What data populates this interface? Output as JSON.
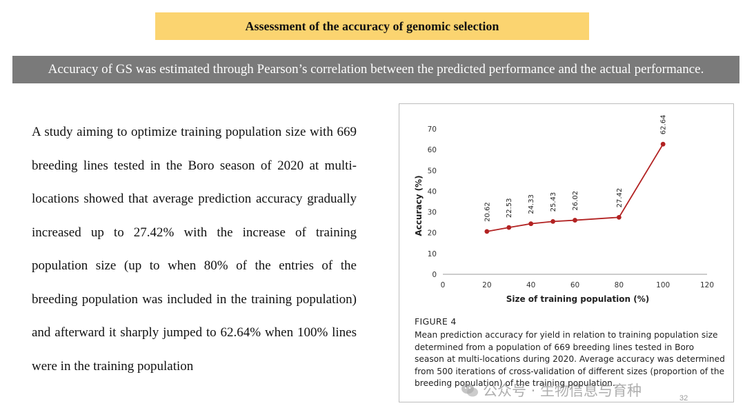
{
  "header": {
    "title": "Assessment of the accuracy of genomic selection",
    "subtitle": "Accuracy of GS was estimated through Pearson’s correlation between the predicted performance and the actual performance."
  },
  "body": {
    "paragraph": "A study aiming to optimize training population size with 669 breeding lines tested in the Boro season of 2020 at multi-locations showed that average prediction accuracy gradually increased up to 27.42% with the increase of training population size (up to when 80% of the entries of the breeding population was included in the training population) and afterward it sharply jumped to 62.64% when 100% lines were in the training population"
  },
  "figure": {
    "label": "FIGURE 4",
    "caption": "Mean prediction accuracy for yield in relation to training population size determined from a population of 669 breeding lines tested in Boro season at multi-locations during 2020. Average accuracy was determined from 500 iterations of cross-validation of different sizes (proportion of the breeding population) of the training population."
  },
  "page_number": "32",
  "watermark": "公众号 · 生物信息与育种",
  "colors": {
    "title_bg": "#fbd470",
    "subtitle_bg": "#7a7a7a",
    "series": "#b22222"
  },
  "chart_data": {
    "type": "line",
    "title": "",
    "xlabel": "Size of training population (%)",
    "ylabel": "Accuracy (%)",
    "xlim": [
      0,
      120
    ],
    "ylim": [
      0,
      70
    ],
    "xticks": [
      0,
      20,
      40,
      60,
      80,
      100,
      120
    ],
    "yticks": [
      0,
      10,
      20,
      30,
      40,
      50,
      60,
      70
    ],
    "grid": false,
    "series": [
      {
        "name": "Mean prediction accuracy",
        "x": [
          20,
          30,
          40,
          50,
          60,
          80,
          100
        ],
        "y": [
          20.62,
          22.53,
          24.33,
          25.43,
          26.02,
          27.42,
          62.64
        ],
        "labels": [
          "20.62",
          "22.53",
          "24.33",
          "25.43",
          "26.02",
          "27.42",
          "62.64"
        ]
      }
    ]
  }
}
